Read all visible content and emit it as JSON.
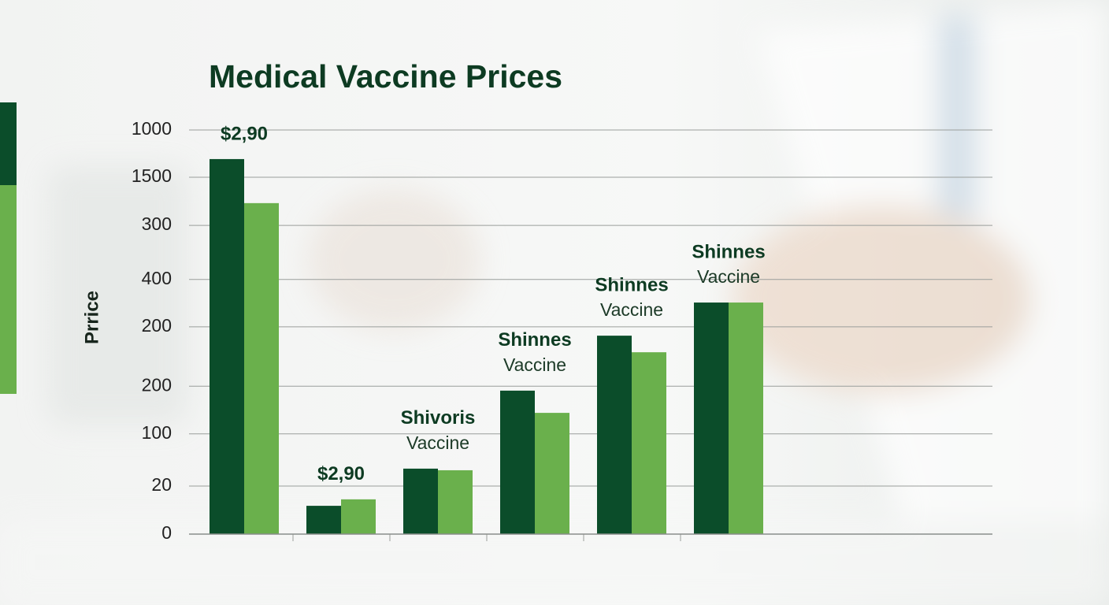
{
  "chart_data": {
    "type": "bar",
    "title": "Medical Vaccine Prices",
    "y_label": "Prrice",
    "categories": [
      null,
      null,
      null,
      null,
      null,
      null
    ],
    "annotations": [
      [
        "$2,90"
      ],
      [
        "$2,90"
      ],
      [
        "Shivoris",
        "Vaccine"
      ],
      [
        "Shinnes",
        "Vaccine"
      ],
      [
        "Shinnes",
        "Vaccine"
      ],
      [
        "Shinnes",
        "Vaccine"
      ]
    ],
    "series": [
      {
        "color": "#0b4d2a",
        "values": [
          928,
          70,
          162,
          355,
          491,
          573
        ]
      },
      {
        "color": "#6ab04c",
        "values": [
          819,
          86,
          158,
          300,
          450,
          573
        ]
      }
    ],
    "ylim": [
      0,
      1000
    ],
    "yticks": [
      0,
      {
        "value": 119,
        "label": "20"
      },
      {
        "value": 248,
        "label": "100"
      },
      {
        "value": 366,
        "label": "200"
      },
      {
        "value": 513,
        "label": "200"
      },
      {
        "value": 630,
        "label": "400"
      },
      {
        "value": 764,
        "label": "300"
      },
      {
        "value": 883,
        "label": "1500"
      },
      1000
    ],
    "grid": true
  }
}
